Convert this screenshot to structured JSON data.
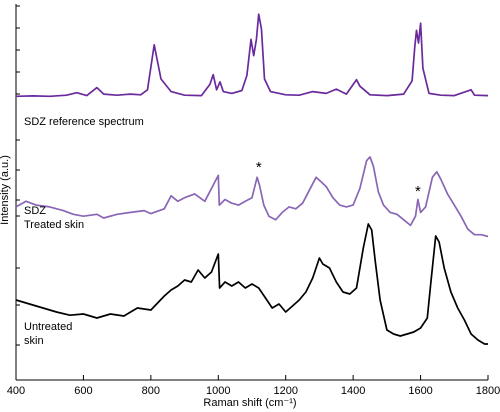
{
  "chart_data": {
    "type": "line",
    "title": "",
    "xlabel": "Raman shift (cm⁻¹)",
    "ylabel": "Intensity (a.u.)",
    "xlim": [
      400,
      1800
    ],
    "xticks": [
      400,
      600,
      800,
      1000,
      1200,
      1400,
      1600,
      1800
    ],
    "grid": false,
    "legend": "none",
    "annotations": [
      {
        "text": "*",
        "x": 1120
      },
      {
        "text": "*",
        "x": 1592
      }
    ],
    "series": [
      {
        "name": "SDZ reference spectrum",
        "label_lines": [
          "SDZ reference spectrum"
        ],
        "color": "#6a2a9c",
        "points": [
          [
            400,
            0.02
          ],
          [
            450,
            0.03
          ],
          [
            500,
            0.02
          ],
          [
            550,
            0.05
          ],
          [
            580,
            0.12
          ],
          [
            610,
            0.04
          ],
          [
            640,
            0.26
          ],
          [
            660,
            0.08
          ],
          [
            700,
            0.05
          ],
          [
            740,
            0.08
          ],
          [
            770,
            0.06
          ],
          [
            790,
            0.2
          ],
          [
            810,
            1.45
          ],
          [
            830,
            0.5
          ],
          [
            860,
            0.15
          ],
          [
            900,
            0.05
          ],
          [
            950,
            0.04
          ],
          [
            975,
            0.35
          ],
          [
            985,
            0.62
          ],
          [
            995,
            0.2
          ],
          [
            1005,
            0.42
          ],
          [
            1015,
            0.15
          ],
          [
            1040,
            0.1
          ],
          [
            1070,
            0.18
          ],
          [
            1085,
            0.6
          ],
          [
            1097,
            1.6
          ],
          [
            1105,
            1.15
          ],
          [
            1113,
            1.6
          ],
          [
            1120,
            2.3
          ],
          [
            1128,
            1.9
          ],
          [
            1137,
            0.5
          ],
          [
            1155,
            0.15
          ],
          [
            1200,
            0.06
          ],
          [
            1240,
            0.05
          ],
          [
            1280,
            0.15
          ],
          [
            1320,
            0.1
          ],
          [
            1350,
            0.22
          ],
          [
            1380,
            0.08
          ],
          [
            1410,
            0.48
          ],
          [
            1420,
            0.3
          ],
          [
            1450,
            0.06
          ],
          [
            1500,
            0.04
          ],
          [
            1550,
            0.08
          ],
          [
            1575,
            0.45
          ],
          [
            1583,
            1.4
          ],
          [
            1588,
            1.85
          ],
          [
            1594,
            1.5
          ],
          [
            1600,
            2.05
          ],
          [
            1607,
            0.8
          ],
          [
            1625,
            0.1
          ],
          [
            1660,
            0.05
          ],
          [
            1700,
            0.04
          ],
          [
            1750,
            0.2
          ],
          [
            1760,
            0.05
          ],
          [
            1800,
            0.04
          ]
        ]
      },
      {
        "name": "SDZ Treated skin",
        "label_lines": [
          "SDZ",
          "Treated skin"
        ],
        "color": "#8a66b6",
        "points": [
          [
            400,
            0.3
          ],
          [
            430,
            0.45
          ],
          [
            460,
            0.35
          ],
          [
            500,
            0.3
          ],
          [
            540,
            0.2
          ],
          [
            570,
            0.1
          ],
          [
            600,
            0.05
          ],
          [
            640,
            0.1
          ],
          [
            660,
            0.0
          ],
          [
            700,
            0.1
          ],
          [
            740,
            0.15
          ],
          [
            780,
            0.2
          ],
          [
            800,
            0.12
          ],
          [
            840,
            0.25
          ],
          [
            860,
            0.6
          ],
          [
            880,
            0.45
          ],
          [
            900,
            0.55
          ],
          [
            930,
            0.65
          ],
          [
            960,
            0.45
          ],
          [
            1000,
            1.15
          ],
          [
            1003,
            0.35
          ],
          [
            1020,
            0.5
          ],
          [
            1040,
            0.4
          ],
          [
            1060,
            0.35
          ],
          [
            1080,
            0.45
          ],
          [
            1100,
            0.55
          ],
          [
            1115,
            1.1
          ],
          [
            1122,
            0.9
          ],
          [
            1135,
            0.35
          ],
          [
            1150,
            0.05
          ],
          [
            1170,
            -0.05
          ],
          [
            1190,
            0.15
          ],
          [
            1210,
            0.3
          ],
          [
            1230,
            0.25
          ],
          [
            1250,
            0.4
          ],
          [
            1270,
            0.75
          ],
          [
            1290,
            1.1
          ],
          [
            1300,
            1.02
          ],
          [
            1320,
            0.85
          ],
          [
            1340,
            0.55
          ],
          [
            1360,
            0.35
          ],
          [
            1380,
            0.3
          ],
          [
            1400,
            0.35
          ],
          [
            1420,
            0.8
          ],
          [
            1440,
            1.55
          ],
          [
            1450,
            1.65
          ],
          [
            1460,
            1.4
          ],
          [
            1475,
            0.7
          ],
          [
            1490,
            0.35
          ],
          [
            1510,
            0.15
          ],
          [
            1530,
            0.1
          ],
          [
            1550,
            -0.05
          ],
          [
            1570,
            -0.2
          ],
          [
            1585,
            0.05
          ],
          [
            1592,
            0.5
          ],
          [
            1600,
            0.15
          ],
          [
            1615,
            0.3
          ],
          [
            1635,
            1.1
          ],
          [
            1648,
            1.25
          ],
          [
            1660,
            1.05
          ],
          [
            1680,
            0.65
          ],
          [
            1700,
            0.35
          ],
          [
            1720,
            0.05
          ],
          [
            1740,
            -0.3
          ],
          [
            1760,
            -0.45
          ],
          [
            1780,
            -0.45
          ],
          [
            1800,
            -0.5
          ]
        ]
      },
      {
        "name": "Untreated skin",
        "label_lines": [
          "Untreated",
          "skin"
        ],
        "color": "#000000",
        "points": [
          [
            400,
            0.0
          ],
          [
            440,
            -0.1
          ],
          [
            480,
            -0.2
          ],
          [
            520,
            -0.3
          ],
          [
            560,
            -0.38
          ],
          [
            600,
            -0.35
          ],
          [
            640,
            -0.45
          ],
          [
            680,
            -0.35
          ],
          [
            720,
            -0.4
          ],
          [
            760,
            -0.2
          ],
          [
            800,
            -0.25
          ],
          [
            840,
            0.1
          ],
          [
            860,
            0.25
          ],
          [
            880,
            0.35
          ],
          [
            900,
            0.5
          ],
          [
            920,
            0.45
          ],
          [
            940,
            0.75
          ],
          [
            960,
            0.55
          ],
          [
            980,
            0.7
          ],
          [
            1000,
            1.15
          ],
          [
            1004,
            0.3
          ],
          [
            1020,
            0.45
          ],
          [
            1040,
            0.35
          ],
          [
            1060,
            0.45
          ],
          [
            1080,
            0.3
          ],
          [
            1100,
            0.4
          ],
          [
            1120,
            0.3
          ],
          [
            1140,
            0.05
          ],
          [
            1160,
            -0.2
          ],
          [
            1180,
            -0.1
          ],
          [
            1200,
            -0.3
          ],
          [
            1220,
            -0.15
          ],
          [
            1240,
            0.0
          ],
          [
            1260,
            0.2
          ],
          [
            1280,
            0.55
          ],
          [
            1300,
            1.05
          ],
          [
            1310,
            0.9
          ],
          [
            1330,
            0.8
          ],
          [
            1350,
            0.45
          ],
          [
            1370,
            0.2
          ],
          [
            1390,
            0.15
          ],
          [
            1410,
            0.3
          ],
          [
            1430,
            1.3
          ],
          [
            1445,
            1.9
          ],
          [
            1455,
            1.75
          ],
          [
            1465,
            1.0
          ],
          [
            1480,
            0.0
          ],
          [
            1500,
            -0.75
          ],
          [
            1520,
            -0.85
          ],
          [
            1540,
            -0.9
          ],
          [
            1560,
            -0.85
          ],
          [
            1580,
            -0.8
          ],
          [
            1600,
            -0.7
          ],
          [
            1620,
            -0.45
          ],
          [
            1630,
            0.4
          ],
          [
            1645,
            1.6
          ],
          [
            1655,
            1.45
          ],
          [
            1670,
            0.8
          ],
          [
            1690,
            0.2
          ],
          [
            1710,
            -0.2
          ],
          [
            1730,
            -0.5
          ],
          [
            1750,
            -0.85
          ],
          [
            1770,
            -1.0
          ],
          [
            1790,
            -1.1
          ],
          [
            1800,
            -1.1
          ]
        ]
      }
    ]
  }
}
